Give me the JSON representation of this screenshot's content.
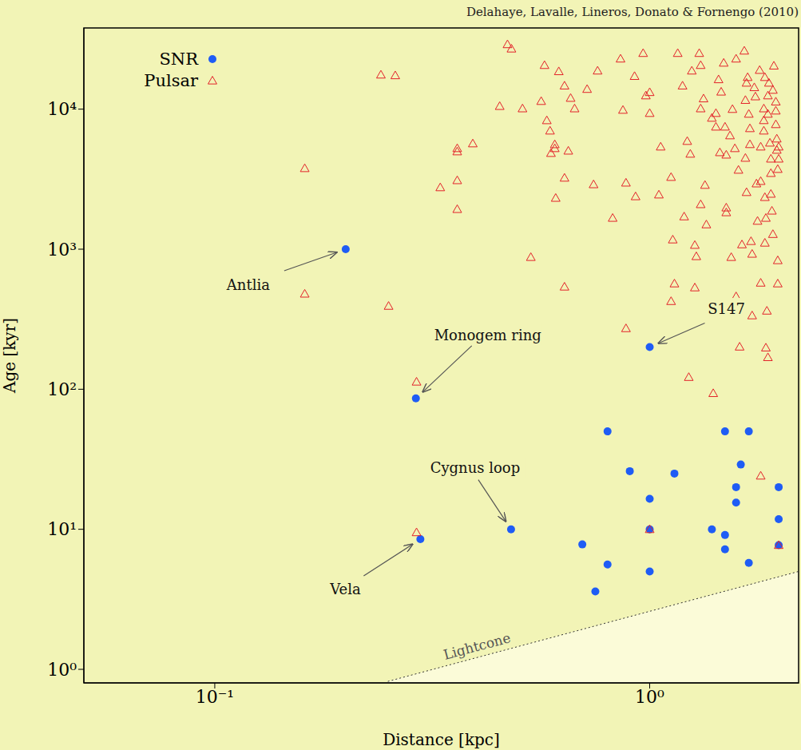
{
  "chart_data": {
    "type": "scatter",
    "title": "Delahaye, Lavalle, Lineros, Donato & Fornengo (2010)",
    "x_label": "Distance [kpc]",
    "y_label": "Age [kyr]",
    "log": true,
    "legend": "upper left",
    "xlim": [
      0.05,
      2.2
    ],
    "ylim": [
      0.8,
      38000
    ],
    "xticks": [
      {
        "value": 0.1,
        "label": "10⁻¹"
      },
      {
        "value": 1,
        "label": "10⁰"
      }
    ],
    "yticks": [
      {
        "value": 1,
        "label": "10⁰"
      },
      {
        "value": 10,
        "label": "10¹"
      },
      {
        "value": 100,
        "label": "10²"
      },
      {
        "value": 1000,
        "label": "10³"
      },
      {
        "value": 10000,
        "label": "10⁴"
      }
    ],
    "series": [
      {
        "name": "SNR",
        "type": "scatter",
        "marker": "circle",
        "color": "#1f5cf5",
        "x": [
          0.2,
          0.29,
          0.297,
          0.48,
          1.0,
          0.8,
          1.49,
          1.69,
          0.9,
          1.14,
          1.62,
          1.58,
          1.98,
          1.58,
          1.0,
          1.0,
          1.39,
          1.49,
          1.98,
          1.98,
          1.49,
          0.7,
          0.8,
          1.0,
          1.69,
          0.75
        ],
        "y": [
          1000,
          86,
          8.5,
          10,
          200,
          50,
          50,
          50,
          26,
          25,
          29,
          20,
          20,
          15.5,
          16.5,
          10,
          10,
          9.1,
          11.8,
          7.7,
          7.2,
          7.8,
          5.6,
          5.0,
          5.75,
          3.6
        ]
      },
      {
        "name": "Pulsar",
        "type": "scatter",
        "marker": "triangle",
        "color": "#e3232a",
        "x": [
          0.161,
          0.161,
          0.251,
          0.241,
          0.26,
          0.291,
          0.291,
          0.361,
          0.361,
          0.361,
          0.361,
          0.33,
          0.392,
          0.452,
          0.471,
          0.481,
          0.51,
          0.533,
          0.563,
          0.573,
          0.58,
          0.593,
          0.605,
          0.605,
          0.608,
          0.59,
          0.618,
          0.637,
          0.637,
          0.65,
          0.658,
          0.672,
          0.718,
          0.743,
          0.759,
          0.637,
          0.822,
          0.857,
          0.868,
          0.882,
          0.882,
          0.923,
          0.928,
          0.966,
          0.98,
          1.0,
          1.0,
          1.05,
          1.06,
          1.12,
          1.13,
          1.16,
          1.19,
          1.22,
          1.24,
          1.25,
          1.3,
          1.31,
          1.31,
          1.28,
          1.27,
          1.27,
          1.23,
          1.14,
          1.12,
          1.2,
          1.31,
          1.33,
          1.39,
          1.42,
          1.42,
          1.34,
          1.35,
          1.4,
          1.44,
          1.45,
          1.46,
          1.48,
          1.49,
          1.5,
          1.5,
          1.5,
          1.53,
          1.55,
          1.54,
          1.57,
          1.58,
          1.6,
          1.63,
          1.65,
          1.66,
          1.66,
          1.67,
          1.68,
          1.67,
          1.69,
          1.7,
          1.7,
          1.71,
          1.72,
          1.72,
          1.58,
          1.61,
          1.74,
          1.75,
          1.76,
          1.77,
          1.79,
          1.8,
          1.8,
          1.8,
          1.8,
          1.83,
          1.83,
          1.83,
          1.84,
          1.84,
          1.84,
          1.85,
          1.85,
          1.87,
          1.86,
          1.87,
          1.87,
          1.88,
          1.89,
          1.9,
          1.9,
          1.9,
          1.91,
          1.92,
          1.92,
          1.93,
          1.95,
          1.95,
          1.95,
          1.96,
          1.96,
          1.97,
          1.97,
          1.98,
          1.98,
          1.97,
          1.98,
          1.0
        ],
        "y": [
          3780,
          480,
          393,
          17600,
          17400,
          113,
          9.5,
          5250,
          4980,
          3100,
          1930,
          2760,
          5680,
          10500,
          29000,
          27000,
          10100,
          877,
          11400,
          20600,
          8310,
          4850,
          5600,
          5250,
          2320,
          7010,
          18600,
          14700,
          3230,
          5040,
          12000,
          10100,
          13900,
          2900,
          18800,
          539,
          1670,
          22900,
          9860,
          2980,
          272,
          17200,
          2380,
          25100,
          12500,
          9360,
          13200,
          2450,
          5390,
          3270,
          1170,
          25100,
          14700,
          5910,
          4790,
          18800,
          25100,
          20600,
          10100,
          889,
          1070,
          532,
          122,
          568,
          425,
          1710,
          2090,
          11900,
          8650,
          7480,
          9360,
          2870,
          1500,
          93.6,
          16300,
          4910,
          13300,
          21400,
          7480,
          4720,
          1980,
          1830,
          6480,
          10000,
          877,
          5250,
          22900,
          3680,
          1080,
          26100,
          11600,
          4480,
          2550,
          16900,
          15400,
          9240,
          7290,
          5610,
          1140,
          925,
          336,
          460,
          201,
          14300,
          12300,
          2940,
          1590,
          19000,
          5390,
          3060,
          575,
          24.1,
          10100,
          8320,
          7010,
          2350,
          16900,
          1110,
          1670,
          198,
          169,
          363,
          12500,
          9240,
          15400,
          5750,
          4420,
          3490,
          2480,
          1880,
          13700,
          1280,
          20400,
          11300,
          7790,
          9740,
          6150,
          5110,
          3730,
          832,
          5390,
          4420,
          568,
          7.7,
          10
        ]
      },
      {
        "name": "Lightcone",
        "type": "line",
        "line_style": "dotted",
        "color": "#333333",
        "x": [
          0.25,
          2.2
        ],
        "y": [
          0.82,
          5.0
        ]
      }
    ],
    "annotations": [
      {
        "text": "Antlia",
        "x": 0.2,
        "y": 1000
      },
      {
        "text": "Monogem ring",
        "x": 0.29,
        "y": 86
      },
      {
        "text": "Cygnus loop",
        "x": 0.48,
        "y": 10
      },
      {
        "text": "Vela",
        "x": 0.297,
        "y": 8.5
      },
      {
        "text": "S147",
        "x": 1.0,
        "y": 200
      }
    ]
  }
}
